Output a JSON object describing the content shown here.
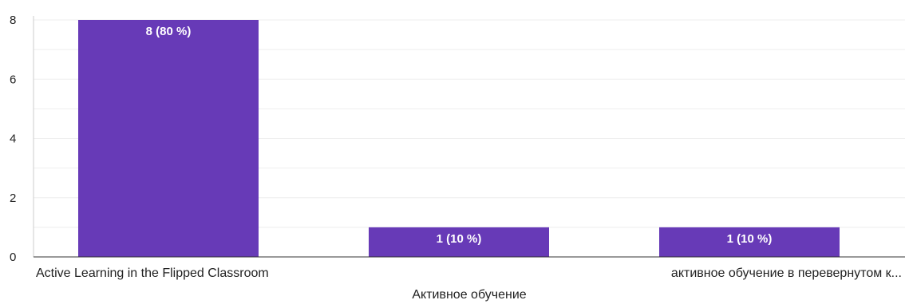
{
  "chart_data": {
    "type": "bar",
    "categories": [
      "Active Learning in the Flipped Classroom",
      "",
      "активное обучение в перевернутом к..."
    ],
    "values": [
      8,
      1,
      1
    ],
    "data_labels": [
      "8 (80 %)",
      "1 (10 %)",
      "1 (10 %)"
    ],
    "xlabel": "Активное обучение",
    "ylabel": "",
    "ylim": [
      0,
      8
    ],
    "yticks": [
      0,
      2,
      4,
      6,
      8
    ],
    "grid": true,
    "bar_color": "#673ab7",
    "grid_color": "#eeeeee"
  }
}
